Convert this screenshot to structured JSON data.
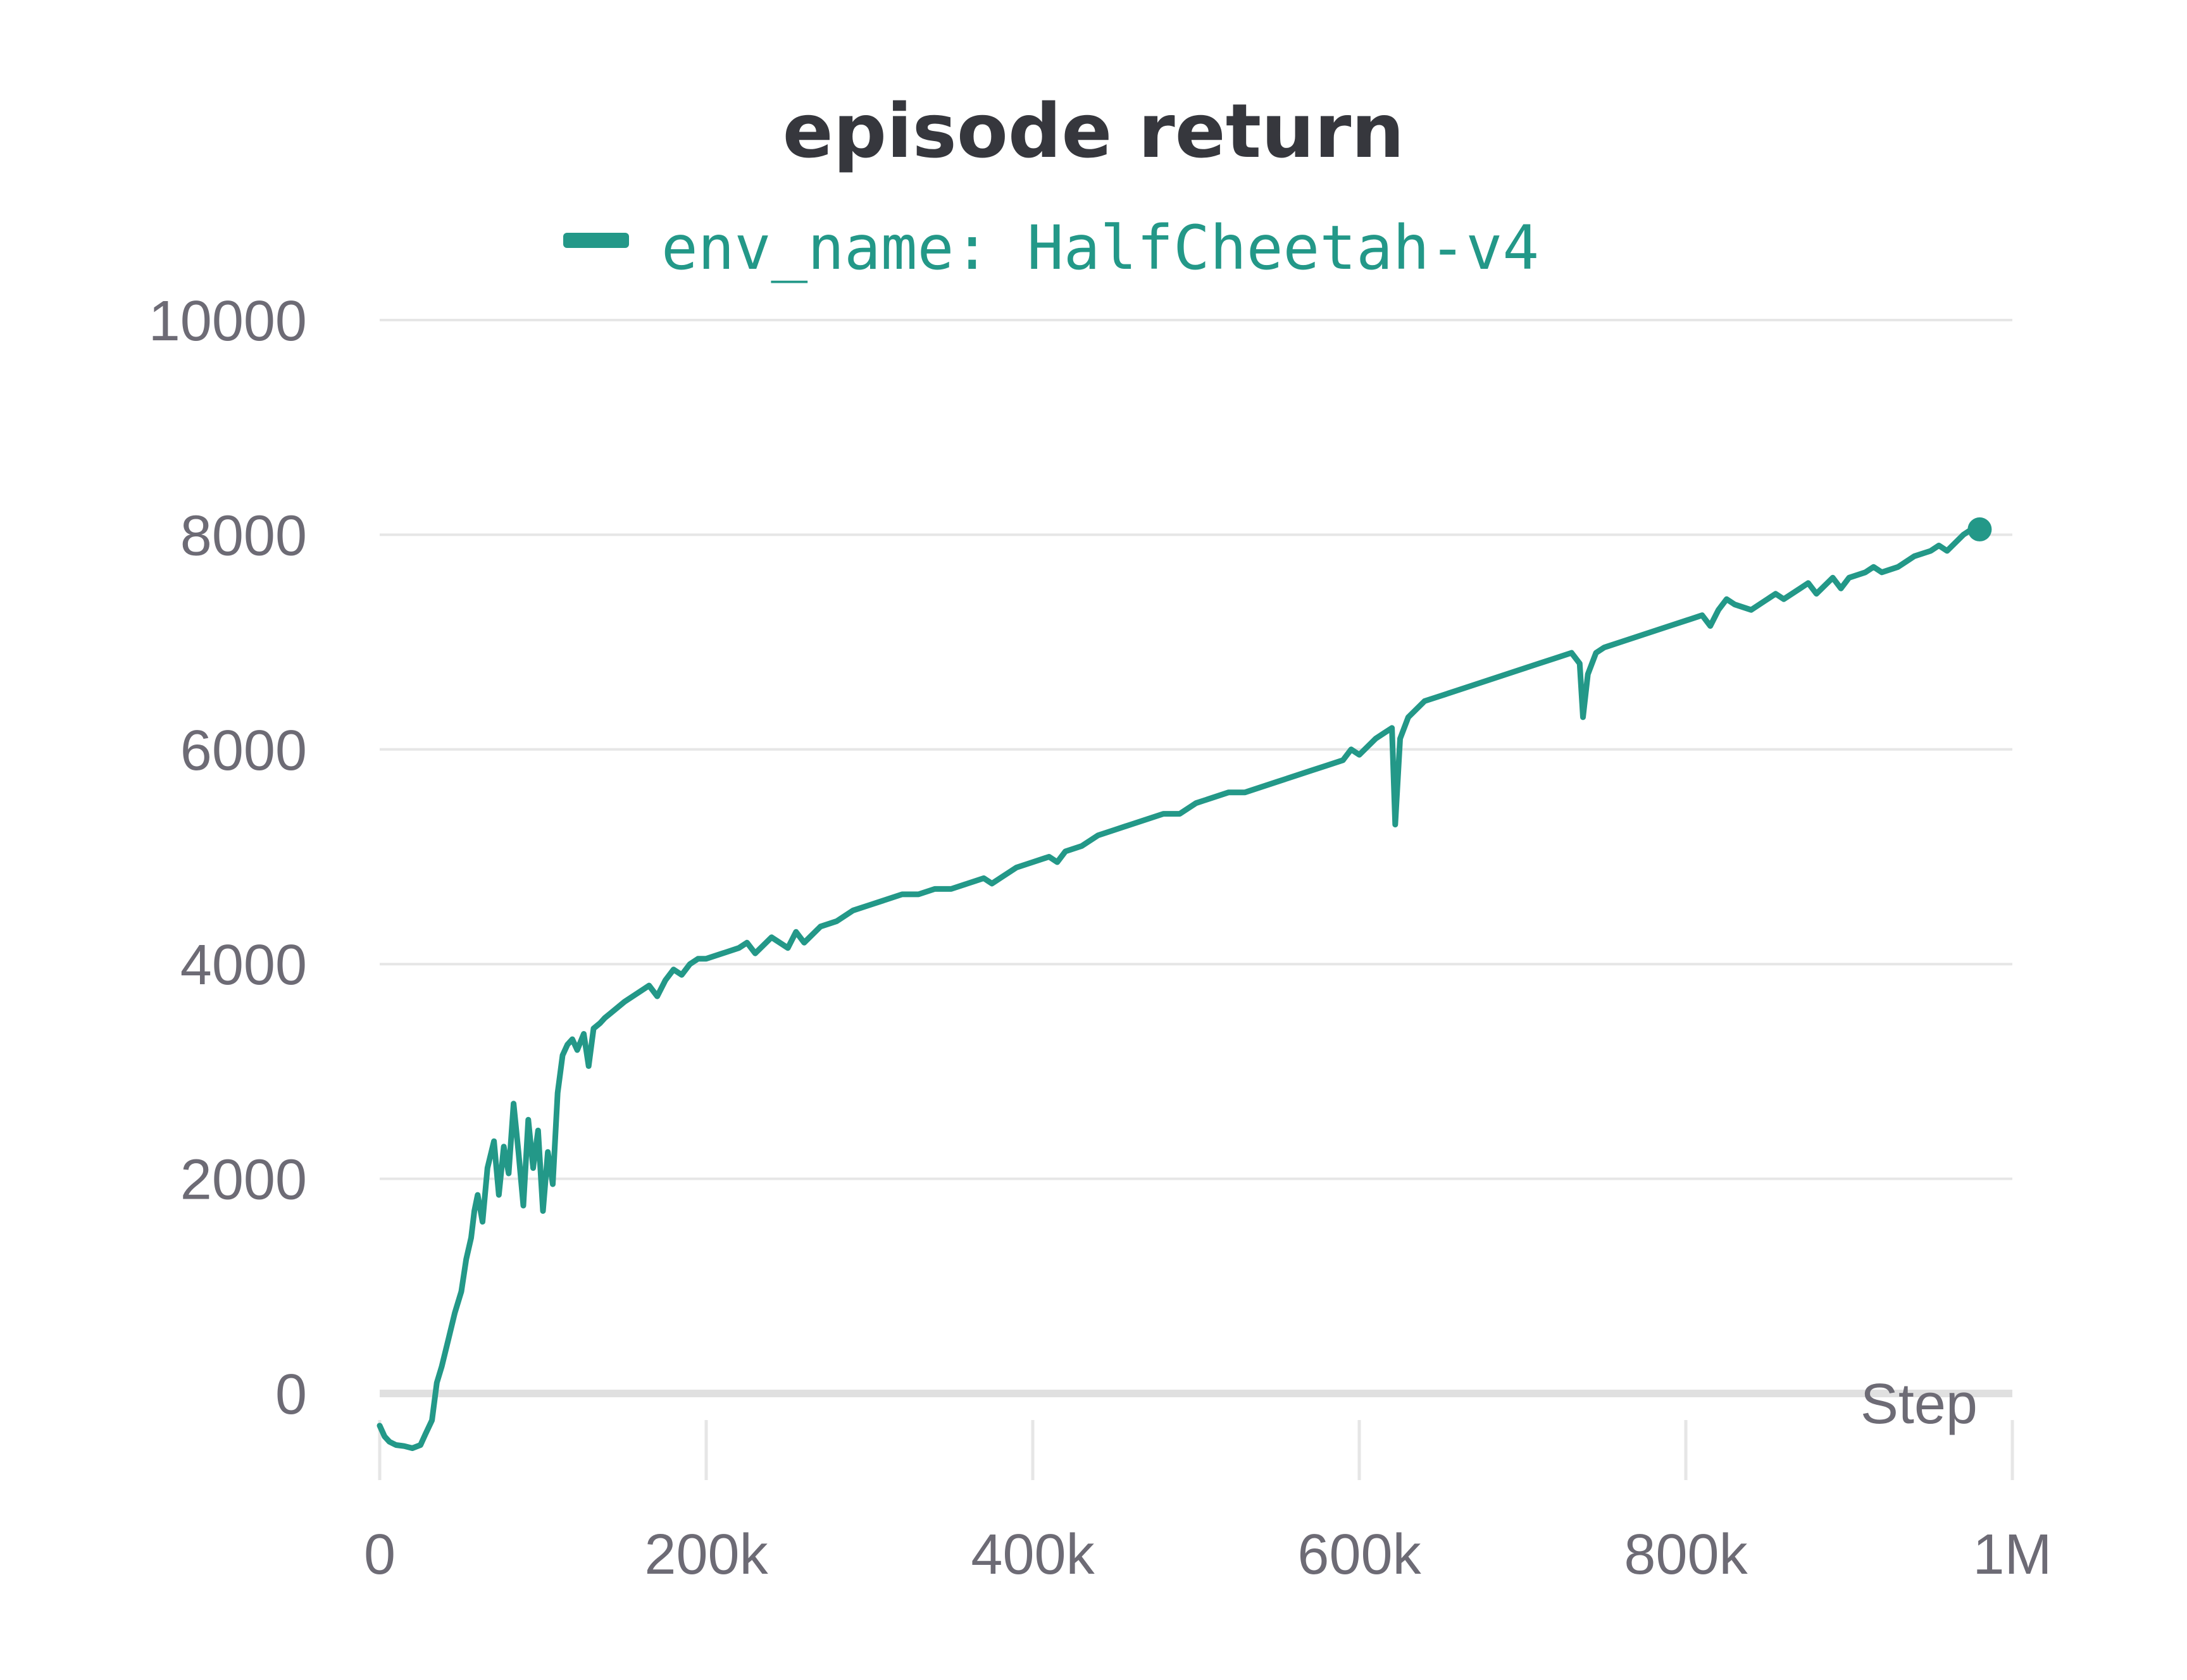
{
  "colors": {
    "series": "#239888",
    "grid": "#e6e6e6",
    "zero_line": "#e0e0e0",
    "text": "#6d6b75",
    "title": "#36373d"
  },
  "chart_data": {
    "type": "line",
    "title": "episode return",
    "xlabel": "Step",
    "ylabel": "",
    "xlim": [
      0,
      1000000
    ],
    "ylim": [
      -600,
      10000
    ],
    "grid": true,
    "legend_position": "top-center",
    "x_ticks": [
      0,
      200000,
      400000,
      600000,
      800000,
      1000000
    ],
    "x_tick_labels": [
      "0",
      "200k",
      "400k",
      "600k",
      "800k",
      "1M"
    ],
    "y_ticks": [
      0,
      2000,
      4000,
      6000,
      8000,
      10000
    ],
    "y_tick_labels": [
      "0",
      "2000",
      "4000",
      "6000",
      "8000",
      "10000"
    ],
    "series": [
      {
        "name": "env_name: HalfCheetah-v4",
        "x": [
          0,
          3000,
          6000,
          10000,
          15000,
          20000,
          25000,
          28000,
          32000,
          35000,
          38000,
          42000,
          46000,
          50000,
          53000,
          56000,
          58000,
          60000,
          63000,
          66000,
          70000,
          73000,
          76000,
          79000,
          82000,
          85000,
          88000,
          91000,
          94000,
          97000,
          100000,
          103000,
          106000,
          109000,
          112000,
          115000,
          118000,
          121000,
          125000,
          128000,
          131000,
          135000,
          138000,
          142000,
          146000,
          150000,
          155000,
          160000,
          165000,
          170000,
          175000,
          180000,
          185000,
          190000,
          195000,
          200000,
          210000,
          220000,
          225000,
          230000,
          240000,
          250000,
          255000,
          260000,
          270000,
          280000,
          290000,
          300000,
          310000,
          320000,
          330000,
          340000,
          350000,
          360000,
          370000,
          375000,
          380000,
          390000,
          400000,
          410000,
          415000,
          420000,
          430000,
          440000,
          450000,
          460000,
          470000,
          480000,
          490000,
          500000,
          510000,
          520000,
          530000,
          540000,
          550000,
          560000,
          570000,
          580000,
          590000,
          595000,
          600000,
          610000,
          615000,
          620000,
          622000,
          625000,
          630000,
          640000,
          650000,
          660000,
          670000,
          680000,
          690000,
          700000,
          710000,
          720000,
          730000,
          735000,
          737000,
          740000,
          745000,
          750000,
          760000,
          770000,
          780000,
          790000,
          800000,
          810000,
          815000,
          820000,
          825000,
          830000,
          840000,
          850000,
          855000,
          860000,
          870000,
          875000,
          880000,
          890000,
          895000,
          900000,
          910000,
          915000,
          920000,
          930000,
          940000,
          950000,
          955000,
          960000,
          970000,
          975000,
          980000
        ],
        "values": [
          -300,
          -400,
          -450,
          -480,
          -490,
          -510,
          -480,
          -380,
          -250,
          100,
          250,
          500,
          750,
          950,
          1250,
          1450,
          1700,
          1850,
          1600,
          2100,
          2350,
          1850,
          2300,
          2050,
          2700,
          2250,
          1750,
          2550,
          2100,
          2450,
          1700,
          2250,
          1950,
          2800,
          3150,
          3250,
          3300,
          3200,
          3350,
          3050,
          3400,
          3450,
          3500,
          3550,
          3600,
          3650,
          3700,
          3750,
          3800,
          3700,
          3850,
          3950,
          3900,
          4000,
          4050,
          4050,
          4100,
          4150,
          4200,
          4100,
          4250,
          4150,
          4300,
          4200,
          4350,
          4400,
          4500,
          4550,
          4600,
          4650,
          4650,
          4700,
          4700,
          4750,
          4800,
          4750,
          4800,
          4900,
          4950,
          5000,
          4950,
          5050,
          5100,
          5200,
          5250,
          5300,
          5350,
          5400,
          5400,
          5500,
          5550,
          5600,
          5600,
          5650,
          5700,
          5750,
          5800,
          5850,
          5900,
          6000,
          5950,
          6100,
          6150,
          6200,
          5300,
          6100,
          6300,
          6450,
          6500,
          6550,
          6600,
          6650,
          6700,
          6750,
          6800,
          6850,
          6900,
          6800,
          6300,
          6700,
          6900,
          6950,
          7000,
          7050,
          7100,
          7150,
          7200,
          7250,
          7150,
          7300,
          7400,
          7350,
          7300,
          7400,
          7450,
          7400,
          7500,
          7550,
          7450,
          7600,
          7500,
          7600,
          7650,
          7700,
          7650,
          7700,
          7800,
          7850,
          7900,
          7850,
          8000,
          8050,
          8050
        ]
      }
    ]
  }
}
